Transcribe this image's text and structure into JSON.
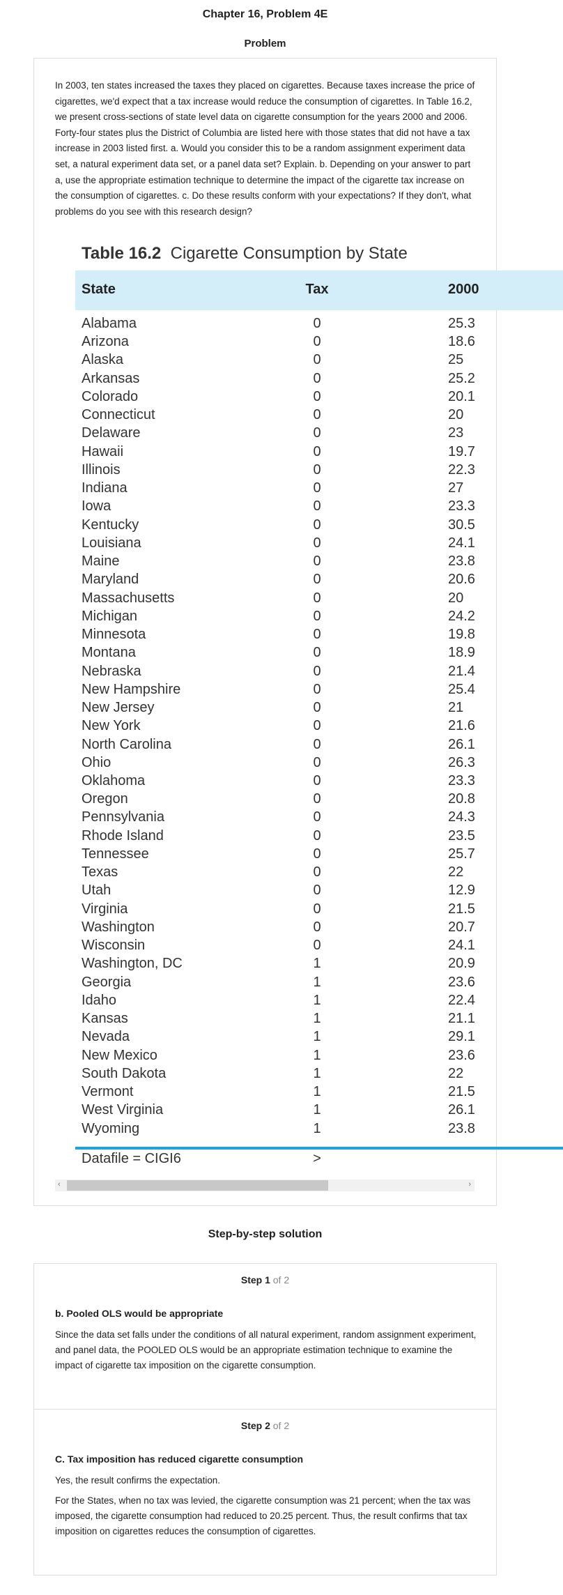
{
  "header": {
    "title": "Chapter 16, Problem 4E",
    "subtitle": "Problem"
  },
  "problem": {
    "text": "In 2003, ten states increased the taxes they placed on cigarettes. Because taxes increase the price of cigarettes, we'd expect that a tax increase would reduce the consumption of cigarettes. In Table 16.2, we present cross-sections of state level data on cigarette consumption for the years 2000 and 2006. Forty-four states plus the District of Columbia are listed here with those states that did not have a tax increase in 2003 listed first. a. Would you consider this to be a random assignment experiment data set, a natural experiment data set, or a panel data set? Explain. b. Depending on your answer to part a, use the appropriate estimation technique to determine the impact of the cigarette tax increase on the consumption of cigarettes. c. Do these results conform with your expectations? If they don't, what problems do you see with this research design?"
  },
  "table": {
    "number": "Table 16.2",
    "title": "Cigarette Consumption by State",
    "columns": [
      "State",
      "Tax",
      "2000"
    ],
    "rows": [
      [
        "Alabama",
        0,
        25.3
      ],
      [
        "Arizona",
        0,
        18.6
      ],
      [
        "Alaska",
        0,
        25
      ],
      [
        "Arkansas",
        0,
        25.2
      ],
      [
        "Colorado",
        0,
        20.1
      ],
      [
        "Connecticut",
        0,
        20
      ],
      [
        "Delaware",
        0,
        23
      ],
      [
        "Hawaii",
        0,
        19.7
      ],
      [
        "Illinois",
        0,
        22.3
      ],
      [
        "Indiana",
        0,
        27
      ],
      [
        "Iowa",
        0,
        23.3
      ],
      [
        "Kentucky",
        0,
        30.5
      ],
      [
        "Louisiana",
        0,
        24.1
      ],
      [
        "Maine",
        0,
        23.8
      ],
      [
        "Maryland",
        0,
        20.6
      ],
      [
        "Massachusetts",
        0,
        20
      ],
      [
        "Michigan",
        0,
        24.2
      ],
      [
        "Minnesota",
        0,
        19.8
      ],
      [
        "Montana",
        0,
        18.9
      ],
      [
        "Nebraska",
        0,
        21.4
      ],
      [
        "New Hampshire",
        0,
        25.4
      ],
      [
        "New Jersey",
        0,
        21
      ],
      [
        "New York",
        0,
        21.6
      ],
      [
        "North Carolina",
        0,
        26.1
      ],
      [
        "Ohio",
        0,
        26.3
      ],
      [
        "Oklahoma",
        0,
        23.3
      ],
      [
        "Oregon",
        0,
        20.8
      ],
      [
        "Pennsylvania",
        0,
        24.3
      ],
      [
        "Rhode Island",
        0,
        23.5
      ],
      [
        "Tennessee",
        0,
        25.7
      ],
      [
        "Texas",
        0,
        22
      ],
      [
        "Utah",
        0,
        12.9
      ],
      [
        "Virginia",
        0,
        21.5
      ],
      [
        "Washington",
        0,
        20.7
      ],
      [
        "Wisconsin",
        0,
        24.1
      ],
      [
        "Washington, DC",
        1,
        20.9
      ],
      [
        "Georgia",
        1,
        23.6
      ],
      [
        "Idaho",
        1,
        22.4
      ],
      [
        "Kansas",
        1,
        21.1
      ],
      [
        "Nevada",
        1,
        29.1
      ],
      [
        "New Mexico",
        1,
        23.6
      ],
      [
        "South Dakota",
        1,
        22
      ],
      [
        "Vermont",
        1,
        21.5
      ],
      [
        "West Virginia",
        1,
        26.1
      ],
      [
        "Wyoming",
        1,
        23.8
      ]
    ],
    "footer": [
      "Datafile = CIGI6",
      ">"
    ]
  },
  "solution": {
    "title": "Step-by-step solution",
    "steps": [
      {
        "label": "Step 1",
        "of": "of 2",
        "heading": "b. Pooled OLS would be appropriate",
        "paragraphs": [
          "Since the data set falls under the conditions of all natural experiment, random assignment experiment, and panel data, the POOLED OLS would be an appropriate estimation technique to examine the impact of cigarette tax imposition on the cigarette consumption."
        ]
      },
      {
        "label": "Step 2",
        "of": "of 2",
        "heading": "C. Tax imposition has reduced cigarette consumption",
        "paragraphs": [
          "Yes, the result confirms the expectation.",
          "For the States, when no tax was levied, the cigarette consumption was 21 percent; when the tax was imposed, the cigarette consumption had reduced to 20.25 percent. Thus, the result confirms that tax imposition on cigarettes reduces the consumption of cigarettes."
        ]
      }
    ]
  }
}
